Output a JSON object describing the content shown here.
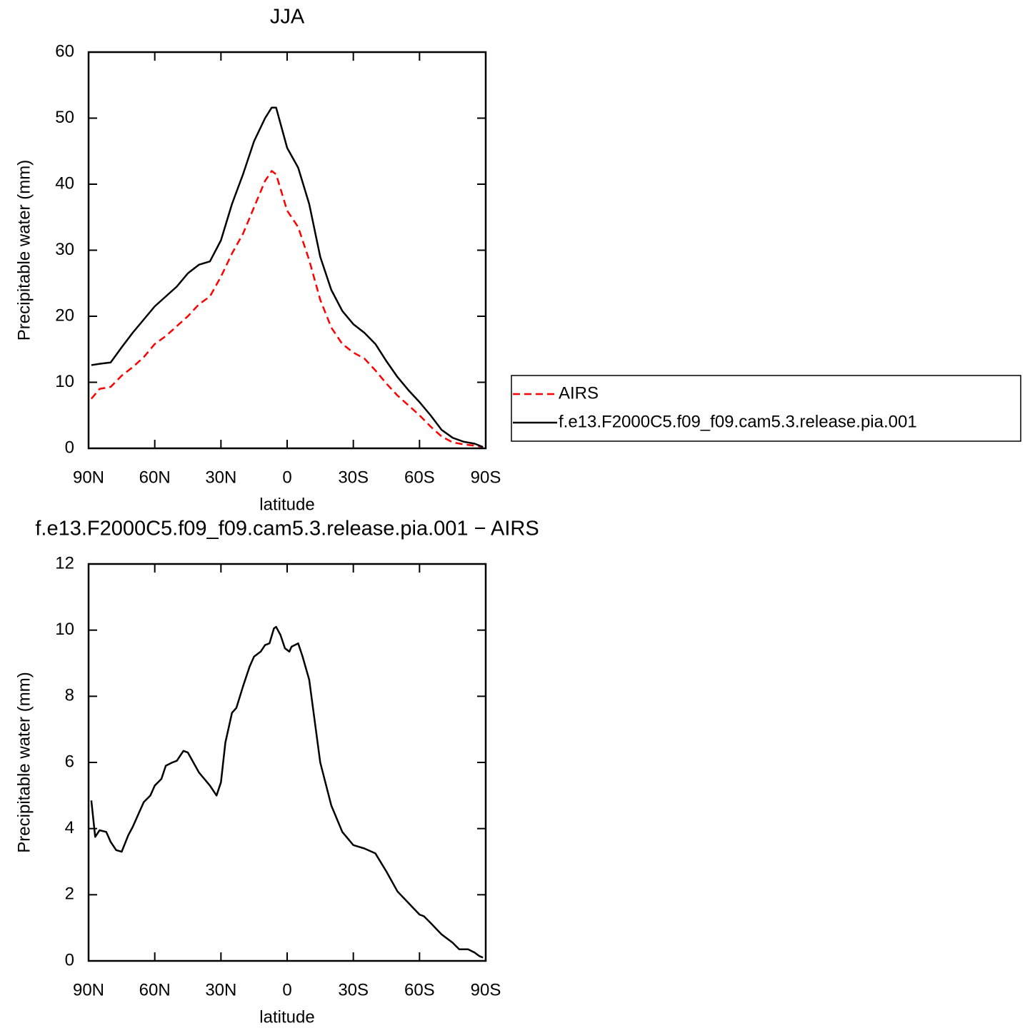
{
  "chart_data": [
    {
      "type": "line",
      "title": "JJA",
      "ylabel": "Precipitable water (mm)",
      "xlabel": "latitude",
      "x": [
        88.75,
        85,
        80,
        75,
        70,
        65,
        60,
        55,
        50,
        45,
        40,
        35,
        30,
        25,
        20,
        15,
        10,
        7,
        5,
        0,
        -5,
        -10,
        -15,
        -20,
        -25,
        -30,
        -35,
        -40,
        -45,
        -50,
        -55,
        -60,
        -65,
        -70,
        -75,
        -80,
        -85,
        -88.75
      ],
      "series": [
        {
          "name": "AIRS",
          "color": "#ff0000",
          "linestyle": "dashed",
          "values": [
            7.5,
            9,
            9.3,
            11,
            12.3,
            13.8,
            15.8,
            17,
            18.5,
            20,
            21.8,
            23,
            26,
            29.5,
            32.5,
            36.5,
            40.5,
            42,
            41.5,
            36,
            33.5,
            28.5,
            22.5,
            18.3,
            15.8,
            14.5,
            13.6,
            11.8,
            9.8,
            8,
            6.5,
            5,
            3.3,
            1.8,
            0.9,
            0.6,
            0.4,
            0.2
          ]
        },
        {
          "name": "f.e13.F2000C5.f09_f09.cam5.3.release.pia.001",
          "color": "#000000",
          "linestyle": "solid",
          "values": [
            12.6,
            12.8,
            13,
            15.3,
            17.5,
            19.5,
            21.5,
            23,
            24.5,
            26.5,
            27.8,
            28.3,
            31.5,
            37,
            41.5,
            46.5,
            50,
            51.6,
            51.6,
            45.5,
            42.5,
            37,
            29,
            24,
            20.8,
            18.8,
            17.5,
            15.8,
            13.2,
            10.8,
            8.8,
            7,
            5,
            2.8,
            1.6,
            1,
            0.7,
            0.2
          ]
        }
      ],
      "xlim": [
        90,
        -90
      ],
      "xticks": [
        {
          "value": 90,
          "label": "90N"
        },
        {
          "value": 60,
          "label": "60N"
        },
        {
          "value": 30,
          "label": "30N"
        },
        0,
        {
          "value": -30,
          "label": "30S"
        },
        {
          "value": -60,
          "label": "60S"
        },
        {
          "value": -90,
          "label": "90S"
        }
      ],
      "ylim": [
        0,
        60
      ],
      "yticks": [
        0,
        10,
        20,
        30,
        40,
        50,
        60
      ],
      "legend": "right"
    },
    {
      "type": "line",
      "title": "f.e13.F2000C5.f09_f09.cam5.3.release.pia.001 − AIRS",
      "ylabel": "Precipitable water (mm)",
      "xlabel": "latitude",
      "x": [
        88.75,
        87,
        85,
        82,
        80,
        77.5,
        75,
        72,
        70,
        67,
        65,
        62,
        60,
        57,
        55,
        52,
        50,
        47,
        45,
        40,
        35,
        32,
        30,
        28,
        25,
        23,
        20,
        17,
        15,
        12,
        10,
        8,
        6,
        5,
        3,
        1,
        -1,
        -2,
        -5,
        -7,
        -10,
        -15,
        -20,
        -25,
        -30,
        -35,
        -40,
        -45,
        -50,
        -55,
        -60,
        -62,
        -65,
        -70,
        -75,
        -78,
        -82,
        -85,
        -87,
        -88.75
      ],
      "series": [
        {
          "color": "#000000",
          "linestyle": "solid",
          "values": [
            4.85,
            3.75,
            3.95,
            3.9,
            3.6,
            3.35,
            3.3,
            3.8,
            4.05,
            4.5,
            4.8,
            5.0,
            5.3,
            5.5,
            5.9,
            6.0,
            6.05,
            6.35,
            6.3,
            5.7,
            5.3,
            5.0,
            5.4,
            6.6,
            7.5,
            7.65,
            8.3,
            8.9,
            9.2,
            9.35,
            9.55,
            9.6,
            10.05,
            10.1,
            9.85,
            9.45,
            9.35,
            9.5,
            9.6,
            9.2,
            8.5,
            6.0,
            4.7,
            3.9,
            3.5,
            3.4,
            3.25,
            2.7,
            2.1,
            1.75,
            1.4,
            1.35,
            1.15,
            0.8,
            0.55,
            0.35,
            0.35,
            0.25,
            0.15,
            0.1
          ]
        }
      ],
      "xlim": [
        90,
        -90
      ],
      "xticks": [
        {
          "value": 90,
          "label": "90N"
        },
        {
          "value": 60,
          "label": "60N"
        },
        {
          "value": 30,
          "label": "30N"
        },
        0,
        {
          "value": -30,
          "label": "30S"
        },
        {
          "value": -60,
          "label": "60S"
        },
        {
          "value": -90,
          "label": "90S"
        }
      ],
      "ylim": [
        0,
        12
      ],
      "yticks": [
        0,
        2,
        4,
        6,
        8,
        10,
        12
      ]
    }
  ]
}
